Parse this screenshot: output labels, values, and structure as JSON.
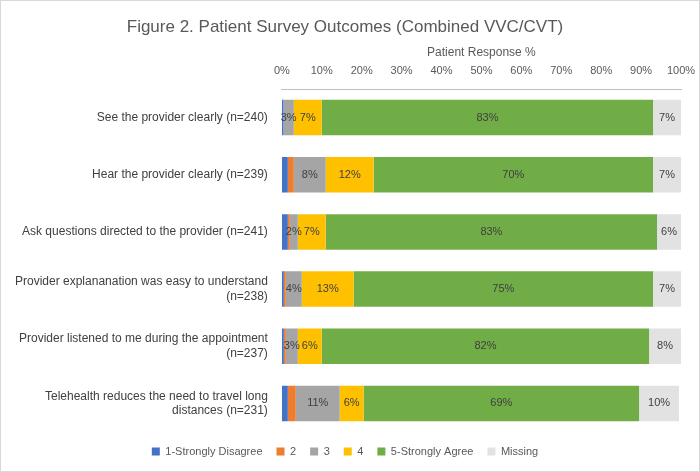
{
  "chart_data": {
    "type": "bar",
    "title": "Figure 2. Patient Survey Outcomes (Combined VVC/CVT)",
    "xlabel": "Patient Response %",
    "orientation": "horizontal",
    "stacked": true,
    "data_labels": true,
    "grid": false,
    "legend": "bottom",
    "categories": [
      "See the provider clearly (n=240)",
      "Hear the provider clearly (n=239)",
      "Ask questions directed to the provider (n=241)",
      "Provider explananation was easy to understand (n=238)",
      "Provider listened to me during the appointment (n=237)",
      "Telehealth reduces the need to travel long distances (n=231)"
    ],
    "xlim": [
      0,
      100
    ],
    "xticks": [
      {
        "value": 0,
        "label": "0%"
      },
      {
        "value": 10,
        "label": "10%"
      },
      {
        "value": 20,
        "label": "20%"
      },
      {
        "value": 30,
        "label": "30%"
      },
      {
        "value": 40,
        "label": "40%"
      },
      {
        "value": 50,
        "label": "50%"
      },
      {
        "value": 60,
        "label": "60%"
      },
      {
        "value": 70,
        "label": "70%"
      },
      {
        "value": 80,
        "label": "80%"
      },
      {
        "value": 90,
        "label": "90%"
      },
      {
        "value": 100,
        "label": "100%"
      }
    ],
    "series": [
      {
        "name": "1-Strongly Disagree",
        "color": "#4472c4",
        "values": [
          0.4,
          1.5,
          1.5,
          0.5,
          0.5,
          1.5
        ],
        "value_labels": [
          null,
          null,
          null,
          null,
          null,
          null
        ]
      },
      {
        "name": "2",
        "color": "#ed7d31",
        "values": [
          0,
          1.5,
          0.5,
          0.5,
          0.5,
          2
        ],
        "value_labels": [
          null,
          null,
          null,
          null,
          null,
          null
        ]
      },
      {
        "name": "3",
        "color": "#a5a5a5",
        "values": [
          2.6,
          8,
          2,
          4,
          3,
          11
        ],
        "value_labels": [
          "3%",
          "8%",
          "2%",
          "4%",
          "3%",
          "11%"
        ]
      },
      {
        "name": "4",
        "color": "#ffc000",
        "values": [
          7,
          12,
          7,
          13,
          6,
          6
        ],
        "value_labels": [
          "7%",
          "12%",
          "7%",
          "13%",
          "6%",
          "6%"
        ]
      },
      {
        "name": "5-Strongly Agree",
        "color": "#70ad47",
        "values": [
          83,
          70,
          83,
          75,
          82,
          69
        ],
        "value_labels": [
          "83%",
          "70%",
          "83%",
          "75%",
          "82%",
          "69%"
        ]
      },
      {
        "name": "Missing",
        "color": "#e2e2e2",
        "values": [
          7,
          7,
          6,
          7,
          8,
          10
        ],
        "value_labels": [
          "7%",
          "7%",
          "6%",
          "7%",
          "8%",
          "10%"
        ]
      }
    ]
  }
}
